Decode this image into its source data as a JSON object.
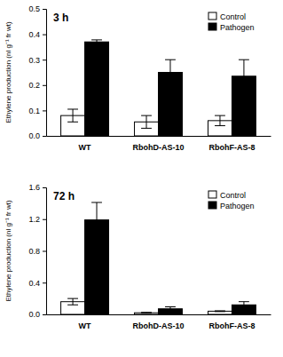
{
  "chart_data": [
    {
      "type": "bar",
      "title": "3 h",
      "y_label": "Ethylene production (nl g⁻¹ fr wt)",
      "categories": [
        "WT",
        "RbohD-AS-10",
        "RbohF-AS-8"
      ],
      "series": [
        {
          "name": "Control",
          "color": "#ffffff",
          "values": [
            0.08,
            0.055,
            0.06
          ],
          "errors": [
            0.025,
            0.025,
            0.02
          ]
        },
        {
          "name": "Pathogen",
          "color": "#000000",
          "values": [
            0.37,
            0.25,
            0.235
          ],
          "errors": [
            0.008,
            0.05,
            0.065
          ]
        }
      ],
      "ylim": [
        0,
        0.5
      ],
      "yticks": [
        {
          "value": 0,
          "label": "0.0"
        },
        0.1,
        0.2,
        0.3,
        0.4,
        0.5
      ],
      "legend": "upper right"
    },
    {
      "type": "bar",
      "title": "72 h",
      "y_label": "Ethylene production (nl g⁻¹ fr wt)",
      "categories": [
        "WT",
        "RbohD-AS-10",
        "RbohF-AS-8"
      ],
      "series": [
        {
          "name": "Control",
          "color": "#ffffff",
          "values": [
            0.16,
            0.02,
            0.04
          ],
          "errors": [
            0.04,
            0.005,
            0.005
          ]
        },
        {
          "name": "Pathogen",
          "color": "#000000",
          "values": [
            1.19,
            0.07,
            0.12
          ],
          "errors": [
            0.22,
            0.025,
            0.04
          ]
        }
      ],
      "ylim": [
        0,
        1.6
      ],
      "yticks": [
        {
          "value": 0,
          "label": "0.0"
        },
        0.4,
        0.8,
        1.2,
        1.6
      ],
      "legend": "upper right"
    }
  ]
}
